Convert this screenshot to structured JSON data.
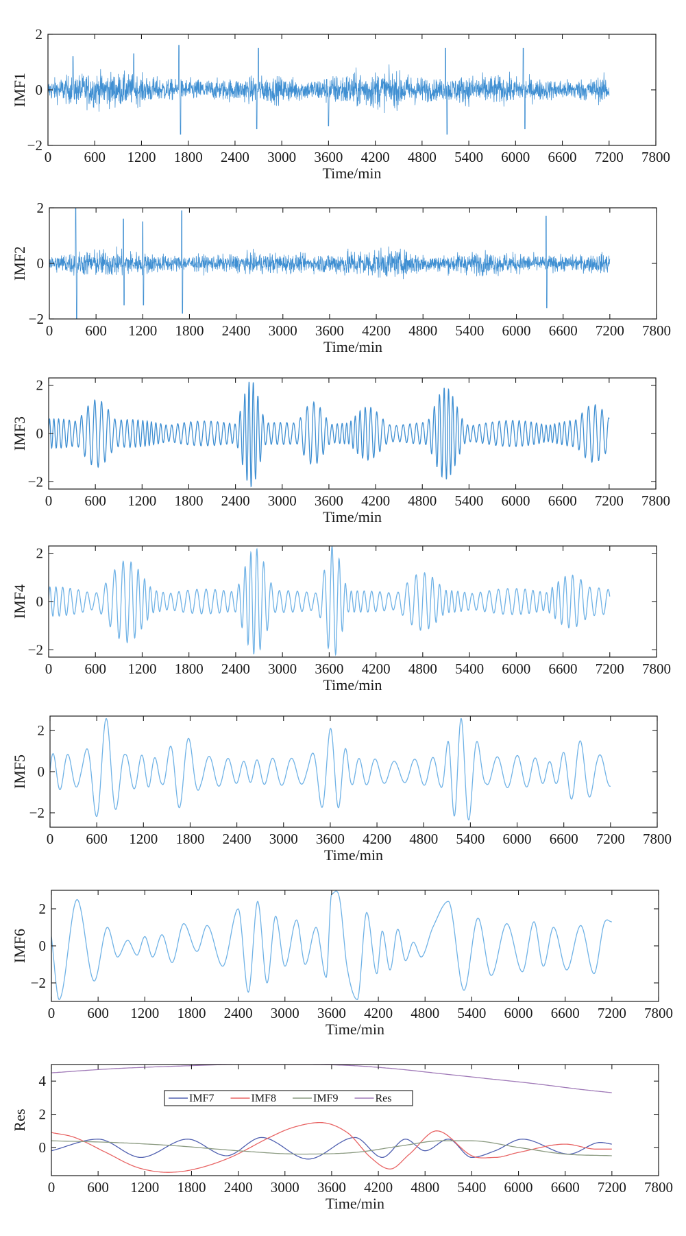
{
  "colors": {
    "axis": "#1a1a1a",
    "imf_dark": "#3f8fd2",
    "imf_light": "#6fb2e6",
    "imf7": "#5060b0",
    "imf8": "#e86464",
    "imf9": "#8a9a80",
    "res": "#a07ab8"
  },
  "chart_data": [
    {
      "type": "line",
      "id": "imf1",
      "ylabel": "IMF1",
      "xlabel": "Time/min",
      "xlim": [
        0,
        7800
      ],
      "ylim": [
        -2,
        2
      ],
      "xticks": [
        "0",
        "600",
        "1200",
        "1800",
        "2400",
        "3000",
        "3600",
        "4200",
        "4800",
        "5400",
        "6000",
        "6600",
        "7200",
        "7800"
      ],
      "yticks": [
        "2",
        "0",
        "−2"
      ],
      "series": [
        {
          "color_key": "imf_dark",
          "kind": "noise",
          "amplitude": 0.45,
          "t_end": 7200,
          "peaks": [
            [
              320,
              1.2
            ],
            [
              1100,
              1.3
            ],
            [
              1680,
              1.6
            ],
            [
              1700,
              -1.6
            ],
            [
              2700,
              1.5
            ],
            [
              2680,
              -1.4
            ],
            [
              3600,
              -1.3
            ],
            [
              5100,
              1.5
            ],
            [
              5120,
              -1.6
            ],
            [
              6100,
              1.5
            ],
            [
              6120,
              -1.4
            ]
          ]
        }
      ]
    },
    {
      "type": "line",
      "id": "imf2",
      "ylabel": "IMF2",
      "xlabel": "Time/min",
      "xlim": [
        0,
        7800
      ],
      "ylim": [
        -2,
        2
      ],
      "xticks": [
        "0",
        "600",
        "1200",
        "1800",
        "2400",
        "3000",
        "3600",
        "4200",
        "4800",
        "5400",
        "6000",
        "6600",
        "7200",
        "7800"
      ],
      "yticks": [
        "2",
        "0",
        "−2"
      ],
      "series": [
        {
          "color_key": "imf_dark",
          "kind": "noise",
          "amplitude": 0.35,
          "t_end": 7200,
          "peaks": [
            [
              340,
              2.0
            ],
            [
              350,
              -2.0
            ],
            [
              950,
              1.6
            ],
            [
              960,
              -1.5
            ],
            [
              1200,
              1.5
            ],
            [
              1210,
              -1.5
            ],
            [
              1700,
              1.9
            ],
            [
              1710,
              -1.8
            ],
            [
              6380,
              1.7
            ],
            [
              6390,
              -1.6
            ]
          ]
        }
      ]
    },
    {
      "type": "line",
      "id": "imf3",
      "ylabel": "IMF3",
      "xlabel": "Time/min",
      "xlim": [
        0,
        7800
      ],
      "ylim": [
        -2.3,
        2.3
      ],
      "xticks": [
        "0",
        "600",
        "1200",
        "1800",
        "2400",
        "3000",
        "3600",
        "4200",
        "4800",
        "5400",
        "6000",
        "6600",
        "7200",
        "7800"
      ],
      "yticks": [
        "2",
        "0",
        "−2"
      ],
      "series": [
        {
          "color_key": "imf_dark",
          "kind": "oscillation",
          "period": 70,
          "amplitude": 0.55,
          "t_end": 7200,
          "bursts": [
            [
              620,
              250,
              1.4
            ],
            [
              2600,
              150,
              2.2
            ],
            [
              3400,
              200,
              1.3
            ],
            [
              4100,
              250,
              1.1
            ],
            [
              5100,
              200,
              1.9
            ],
            [
              7000,
              250,
              1.2
            ]
          ]
        }
      ]
    },
    {
      "type": "line",
      "id": "imf4",
      "ylabel": "IMF4",
      "xlabel": "Time/min",
      "xlim": [
        0,
        7800
      ],
      "ylim": [
        -2.3,
        2.3
      ],
      "xticks": [
        "0",
        "600",
        "1200",
        "1800",
        "2400",
        "3000",
        "3600",
        "4200",
        "4800",
        "5400",
        "6000",
        "6600",
        "7200",
        "7800"
      ],
      "yticks": [
        "2",
        "0",
        "−2"
      ],
      "series": [
        {
          "color_key": "imf_light",
          "kind": "oscillation",
          "period": 95,
          "amplitude": 0.55,
          "t_end": 7200,
          "bursts": [
            [
              1000,
              300,
              1.7
            ],
            [
              2650,
              200,
              2.2
            ],
            [
              3650,
              150,
              2.3
            ],
            [
              4800,
              300,
              1.2
            ],
            [
              6700,
              300,
              1.1
            ]
          ]
        }
      ]
    },
    {
      "type": "line",
      "id": "imf5",
      "ylabel": "IMF5",
      "xlabel": "Time/min",
      "xlim": [
        0,
        7800
      ],
      "ylim": [
        -2.7,
        2.7
      ],
      "xticks": [
        "0",
        "600",
        "1200",
        "1800",
        "2400",
        "3000",
        "3600",
        "4200",
        "4800",
        "5400",
        "6000",
        "6600",
        "7200",
        "7800"
      ],
      "yticks": [
        "2",
        "0",
        "−2"
      ],
      "series": [
        {
          "color_key": "imf_light",
          "kind": "oscillation",
          "period": 210,
          "amplitude": 0.8,
          "t_end": 7200,
          "bursts": [
            [
              700,
              250,
              2.6
            ],
            [
              1700,
              250,
              1.8
            ],
            [
              3600,
              250,
              2.1
            ],
            [
              5300,
              250,
              2.6
            ],
            [
              6800,
              300,
              1.5
            ]
          ]
        }
      ]
    },
    {
      "type": "line",
      "id": "imf6",
      "ylabel": "IMF6",
      "xlabel": "Time/min",
      "xlim": [
        0,
        7800
      ],
      "ylim": [
        -3,
        3
      ],
      "xticks": [
        "0",
        "600",
        "1200",
        "1800",
        "2400",
        "3000",
        "3600",
        "4200",
        "4800",
        "5400",
        "6000",
        "6600",
        "7200",
        "7800"
      ],
      "yticks": [
        "2",
        "0",
        "−2"
      ],
      "series": [
        {
          "color_key": "imf_light",
          "kind": "points",
          "t_end": 7200,
          "x": [
            0,
            100,
            330,
            550,
            720,
            850,
            980,
            1100,
            1200,
            1300,
            1420,
            1550,
            1700,
            1870,
            2000,
            2200,
            2400,
            2530,
            2650,
            2770,
            2880,
            3000,
            3150,
            3260,
            3400,
            3530,
            3600,
            3700,
            3800,
            3930,
            4050,
            4180,
            4250,
            4350,
            4450,
            4550,
            4650,
            4750,
            4900,
            5100,
            5300,
            5480,
            5650,
            5850,
            6050,
            6200,
            6320,
            6450,
            6620,
            6800,
            6970,
            7100,
            7200
          ],
          "y": [
            0.5,
            -2.9,
            2.5,
            -1.9,
            1.0,
            -0.6,
            0.3,
            -0.5,
            0.5,
            -0.6,
            0.6,
            -0.9,
            1.2,
            -0.3,
            1.1,
            -1.1,
            2.0,
            -2.5,
            2.4,
            -2.0,
            1.6,
            -1.1,
            1.4,
            -1.0,
            1.0,
            -1.7,
            2.8,
            2.6,
            -1.2,
            -2.9,
            1.8,
            -1.5,
            0.8,
            -1.3,
            0.9,
            -0.8,
            0.2,
            -0.6,
            1.0,
            2.4,
            -2.4,
            1.5,
            -1.6,
            1.2,
            -1.4,
            1.3,
            -1.1,
            1.0,
            -1.3,
            1.1,
            -1.5,
            1.2,
            1.3
          ]
        }
      ]
    },
    {
      "type": "line",
      "id": "res",
      "ylabel": "Res",
      "xlabel": "Time/min",
      "xlim": [
        0,
        7800
      ],
      "ylim": [
        -1.7,
        5
      ],
      "xticks": [
        "0",
        "600",
        "1200",
        "1800",
        "2400",
        "3000",
        "3600",
        "4200",
        "4800",
        "5400",
        "6000",
        "6600",
        "7200",
        "7800"
      ],
      "yticks": [
        "4",
        "2",
        "0"
      ],
      "legend": {
        "placement": "top-left",
        "entries": [
          "IMF7",
          "IMF8",
          "IMF9",
          "Res"
        ]
      },
      "series": [
        {
          "name": "IMF7",
          "color_key": "imf7",
          "kind": "points",
          "t_end": 7200,
          "x": [
            0,
            600,
            1150,
            1750,
            2250,
            2700,
            3300,
            3900,
            4250,
            4550,
            4800,
            5100,
            5400,
            5700,
            6050,
            6650,
            7050,
            7200
          ],
          "y": [
            -0.2,
            0.5,
            -0.6,
            0.5,
            -0.5,
            0.6,
            -0.7,
            0.6,
            -0.6,
            0.5,
            -0.2,
            0.5,
            -0.6,
            -0.2,
            0.5,
            -0.4,
            0.3,
            0.2
          ]
        },
        {
          "name": "IMF8",
          "color_key": "imf8",
          "kind": "points",
          "t_end": 7200,
          "x": [
            0,
            300,
            700,
            1100,
            1500,
            1850,
            2300,
            2800,
            3100,
            3450,
            3800,
            4100,
            4350,
            4600,
            4950,
            5400,
            5700,
            6000,
            6600,
            7000,
            7200
          ],
          "y": [
            0.9,
            0.6,
            -0.3,
            -1.2,
            -1.5,
            -1.3,
            -0.6,
            0.6,
            1.2,
            1.5,
            0.9,
            -0.6,
            -1.3,
            -0.4,
            1.0,
            -0.5,
            -0.6,
            -0.3,
            0.2,
            -0.1,
            -0.1
          ]
        },
        {
          "name": "IMF9",
          "color_key": "imf9",
          "kind": "points",
          "t_end": 7200,
          "x": [
            0,
            800,
            1600,
            2400,
            3200,
            3900,
            4500,
            5000,
            5400,
            6000,
            6600,
            7200
          ],
          "y": [
            0.4,
            0.3,
            0.1,
            -0.2,
            -0.4,
            -0.3,
            0.1,
            0.4,
            0.4,
            0.0,
            -0.4,
            -0.5
          ]
        },
        {
          "name": "Res",
          "color_key": "res",
          "kind": "points",
          "t_end": 7200,
          "x": [
            0,
            800,
            1600,
            2400,
            3200,
            3800,
            4400,
            5000,
            5600,
            6200,
            6800,
            7200
          ],
          "y": [
            4.5,
            4.75,
            4.9,
            5.0,
            5.0,
            4.95,
            4.75,
            4.45,
            4.15,
            3.85,
            3.5,
            3.3
          ]
        }
      ]
    }
  ]
}
